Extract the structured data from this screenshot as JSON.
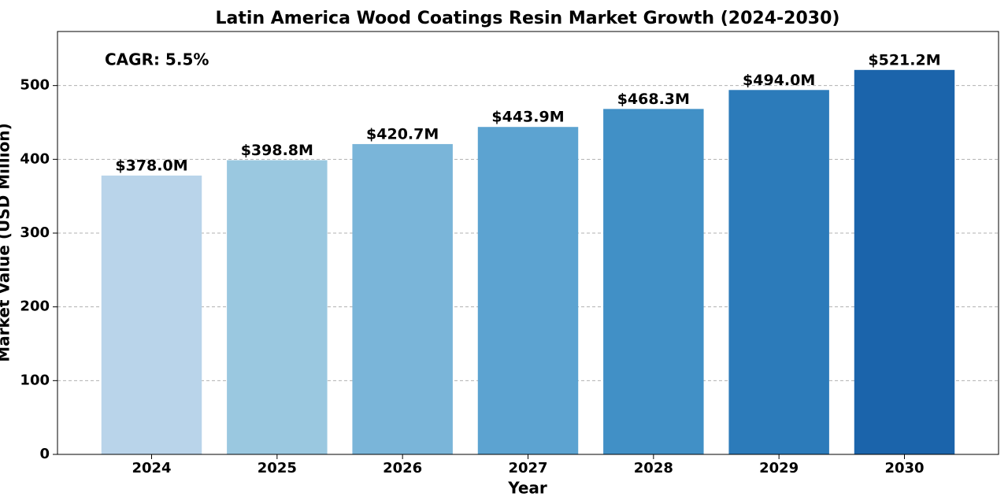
{
  "chart_data": {
    "type": "bar",
    "title": "Latin America Wood Coatings Resin Market Growth (2024-2030)",
    "x_label": "Year",
    "y_label": "Market Value (USD Million)",
    "annotation": "CAGR: 5.5%",
    "categories": [
      "2024",
      "2025",
      "2026",
      "2027",
      "2028",
      "2029",
      "2030"
    ],
    "values": [
      378.0,
      398.8,
      420.7,
      443.9,
      468.3,
      494.0,
      521.2
    ],
    "value_labels": [
      "$378.0M",
      "$398.8M",
      "$420.7M",
      "$443.9M",
      "$468.3M",
      "$494.0M",
      "$521.2M"
    ],
    "colors": [
      "#b9d4ea",
      "#9ac8e0",
      "#7ab5d9",
      "#5ca3d1",
      "#4190c6",
      "#2c7bba",
      "#1b64ab"
    ],
    "ylim": [
      0,
      573.3
    ],
    "yticks": [
      0,
      100,
      200,
      300,
      400,
      500
    ],
    "grid": true
  }
}
